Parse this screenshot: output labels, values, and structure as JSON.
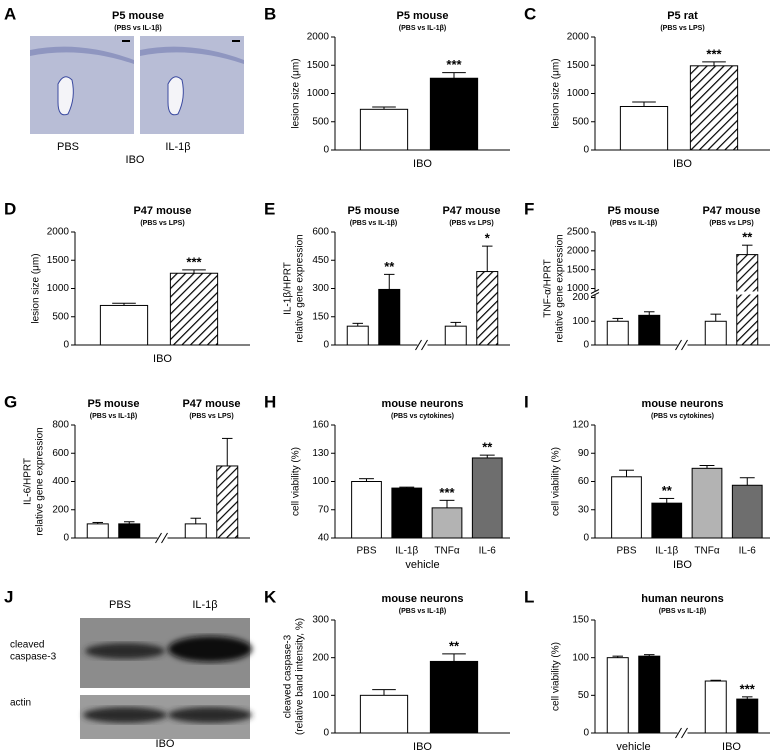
{
  "chart_data": [
    {
      "type": "micrograph",
      "letter": "A",
      "title": "P5 mouse",
      "subtitle": "(PBS vs IL-1β)",
      "labels": [
        "PBS",
        "IL-1β"
      ],
      "xlabel": "IBO"
    },
    {
      "type": "bar",
      "letter": "B",
      "title": "P5 mouse",
      "subtitle": "(PBS vs IL-1β)",
      "ylabel": [
        "lesion size (μm)"
      ],
      "xlabel": "IBO",
      "ylim": [
        0,
        2000
      ],
      "yticks": [
        0,
        500,
        1000,
        1500,
        2000
      ],
      "values": [
        720,
        1270
      ],
      "errors": [
        40,
        100
      ],
      "colors": [
        "#ffffff",
        "#000000"
      ],
      "hatched": [
        false,
        false
      ],
      "annotations": [
        null,
        "***"
      ]
    },
    {
      "type": "bar",
      "letter": "C",
      "title": "P5 rat",
      "subtitle": "(PBS vs LPS)",
      "ylabel": [
        "lesion size (μm)"
      ],
      "xlabel": "IBO",
      "ylim": [
        0,
        2000
      ],
      "yticks": [
        0,
        500,
        1000,
        1500,
        2000
      ],
      "values": [
        770,
        1490
      ],
      "errors": [
        80,
        70
      ],
      "colors": [
        "#ffffff",
        "#ffffff"
      ],
      "hatched": [
        false,
        true
      ],
      "annotations": [
        null,
        "***"
      ]
    },
    {
      "type": "bar",
      "letter": "D",
      "title": "P47 mouse",
      "subtitle": "(PBS vs LPS)",
      "ylabel": [
        "lesion size (μm)"
      ],
      "xlabel": "IBO",
      "ylim": [
        0,
        2000
      ],
      "yticks": [
        0,
        500,
        1000,
        1500,
        2000
      ],
      "values": [
        700,
        1270
      ],
      "errors": [
        40,
        60
      ],
      "colors": [
        "#ffffff",
        "#ffffff"
      ],
      "hatched": [
        false,
        true
      ],
      "annotations": [
        null,
        "***"
      ]
    },
    {
      "type": "bar",
      "letter": "E",
      "groups": [
        {
          "title": "P5 mouse",
          "subtitle": "(PBS vs IL-1β)"
        },
        {
          "title": "P47 mouse",
          "subtitle": "(PBS vs LPS)"
        }
      ],
      "ylabel": [
        "IL-1β/HPRT",
        "relative gene expression"
      ],
      "ylim": [
        0,
        600
      ],
      "yticks": [
        0,
        150,
        300,
        450,
        600
      ],
      "values": [
        100,
        295,
        100,
        390
      ],
      "errors": [
        15,
        80,
        20,
        135
      ],
      "colors": [
        "#ffffff",
        "#000000",
        "#ffffff",
        "#ffffff"
      ],
      "hatched": [
        false,
        false,
        false,
        true
      ],
      "annotations": [
        null,
        "**",
        null,
        "*"
      ]
    },
    {
      "type": "bar",
      "letter": "F",
      "groups": [
        {
          "title": "P5 mouse",
          "subtitle": "(PBS vs IL-1β)"
        },
        {
          "title": "P47 mouse",
          "subtitle": "(PBS vs LPS)"
        }
      ],
      "ylabel": [
        "TNF-α/HPRT",
        "relative gene expression"
      ],
      "ylim": [
        0,
        2500
      ],
      "ybreak": [
        200,
        1000
      ],
      "yticks": [
        0,
        100,
        200,
        1000,
        1500,
        2000,
        2500
      ],
      "values": [
        100,
        125,
        100,
        1900
      ],
      "errors": [
        12,
        15,
        30,
        250
      ],
      "colors": [
        "#ffffff",
        "#000000",
        "#ffffff",
        "#ffffff"
      ],
      "hatched": [
        false,
        false,
        false,
        true
      ],
      "annotations": [
        null,
        null,
        null,
        "**"
      ]
    },
    {
      "type": "bar",
      "letter": "G",
      "groups": [
        {
          "title": "P5 mouse",
          "subtitle": "(PBS vs IL-1β)"
        },
        {
          "title": "P47 mouse",
          "subtitle": "(PBS vs LPS)"
        }
      ],
      "ylabel": [
        "IL-6/HPRT",
        "relative gene expression"
      ],
      "ylim": [
        0,
        800
      ],
      "yticks": [
        0,
        200,
        400,
        600,
        800
      ],
      "values": [
        100,
        100,
        100,
        510
      ],
      "errors": [
        10,
        15,
        40,
        195
      ],
      "colors": [
        "#ffffff",
        "#000000",
        "#ffffff",
        "#ffffff"
      ],
      "hatched": [
        false,
        false,
        false,
        true
      ]
    },
    {
      "type": "bar",
      "letter": "H",
      "title": "mouse neurons",
      "subtitle": "(PBS vs cytokines)",
      "ylabel": [
        "cell viability (%)"
      ],
      "xlabel": "vehicle",
      "categories": [
        "PBS",
        "IL-1β",
        "TNFα",
        "IL-6"
      ],
      "ylim": [
        40,
        160
      ],
      "yticks": [
        40,
        70,
        100,
        130,
        160
      ],
      "values": [
        100,
        93,
        72,
        125
      ],
      "errors": [
        3,
        1,
        8,
        3
      ],
      "colors": [
        "#ffffff",
        "#000000",
        "#b3b3b3",
        "#6e6e6e"
      ],
      "hatched": [
        false,
        false,
        false,
        false
      ],
      "annotations": [
        null,
        null,
        "***",
        "**"
      ]
    },
    {
      "type": "bar",
      "letter": "I",
      "title": "mouse neurons",
      "subtitle": "(PBS vs cytokines)",
      "ylabel": [
        "cell viability (%)"
      ],
      "xlabel": "IBO",
      "categories": [
        "PBS",
        "IL-1β",
        "TNFα",
        "IL-6"
      ],
      "ylim": [
        0,
        120
      ],
      "yticks": [
        0,
        30,
        60,
        90,
        120
      ],
      "values": [
        65,
        37,
        74,
        56
      ],
      "errors": [
        7,
        5,
        3,
        8
      ],
      "colors": [
        "#ffffff",
        "#000000",
        "#b3b3b3",
        "#6e6e6e"
      ],
      "hatched": [
        false,
        false,
        false,
        false
      ],
      "annotations": [
        null,
        "**",
        null,
        null
      ]
    },
    {
      "type": "blot",
      "letter": "J",
      "labels": [
        "PBS",
        "IL-1β"
      ],
      "row_labels": [
        [
          "cleaved",
          "caspase-3"
        ],
        [
          "actin"
        ]
      ],
      "xlabel": "IBO"
    },
    {
      "type": "bar",
      "letter": "K",
      "title": "mouse neurons",
      "subtitle": "(PBS vs IL-1β)",
      "ylabel": [
        "cleaved caspase-3",
        "(relative band intensity, %)"
      ],
      "xlabel": "IBO",
      "ylim": [
        0,
        300
      ],
      "yticks": [
        0,
        100,
        200,
        300
      ],
      "values": [
        100,
        190
      ],
      "errors": [
        15,
        20
      ],
      "colors": [
        "#ffffff",
        "#000000"
      ],
      "hatched": [
        false,
        false
      ],
      "annotations": [
        null,
        "**"
      ]
    },
    {
      "type": "bar",
      "letter": "L",
      "title": "human neurons",
      "subtitle": "(PBS vs IL-1β)",
      "ylabel": [
        "cell viability (%)"
      ],
      "groups": [
        {
          "label": "vehicle"
        },
        {
          "label": "IBO"
        }
      ],
      "ylim": [
        0,
        150
      ],
      "yticks": [
        0,
        50,
        100,
        150
      ],
      "values": [
        100,
        102,
        69,
        45
      ],
      "errors": [
        2,
        2,
        1,
        3
      ],
      "colors": [
        "#ffffff",
        "#000000",
        "#ffffff",
        "#000000"
      ],
      "hatched": [
        false,
        false,
        false,
        false
      ],
      "annotations": [
        null,
        null,
        null,
        "***"
      ]
    }
  ]
}
